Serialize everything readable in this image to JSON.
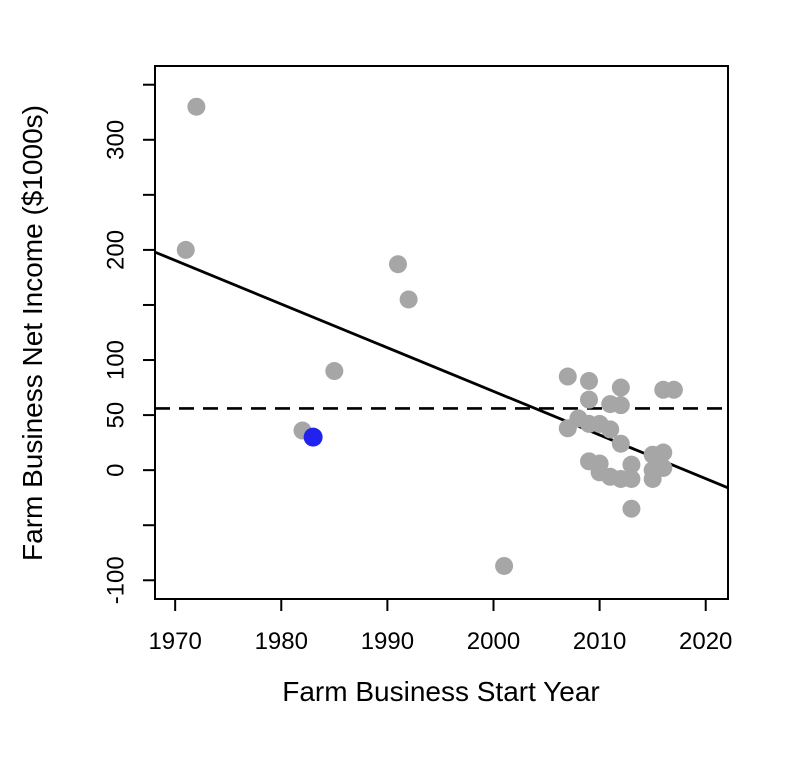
{
  "chart_data": {
    "type": "scatter",
    "title": "",
    "xlabel": "Farm Business Start Year",
    "ylabel": "Farm Business Net Income ($1000s)",
    "x_range": [
      1968.1,
      2022.1
    ],
    "y_range": [
      -117,
      367
    ],
    "x_ticks": [
      1970,
      1980,
      1990,
      2000,
      2010,
      2020
    ],
    "y_ticks_all": [
      -100,
      -50,
      0,
      50,
      100,
      150,
      200,
      250,
      300,
      350
    ],
    "y_ticks_labeled": [
      -100,
      0,
      50,
      100,
      200,
      300
    ],
    "grid": false,
    "legend": "none",
    "points": [
      {
        "year": 1972,
        "value": 330
      },
      {
        "year": 1971,
        "value": 200
      },
      {
        "year": 1991,
        "value": 187
      },
      {
        "year": 1992,
        "value": 155
      },
      {
        "year": 1985,
        "value": 90
      },
      {
        "year": 1982,
        "value": 36
      },
      {
        "year": 2001,
        "value": -87
      },
      {
        "year": 2007,
        "value": 85
      },
      {
        "year": 2009,
        "value": 81
      },
      {
        "year": 2009,
        "value": 64
      },
      {
        "year": 2012,
        "value": 75
      },
      {
        "year": 2016,
        "value": 73
      },
      {
        "year": 2017,
        "value": 73
      },
      {
        "year": 2011,
        "value": 60
      },
      {
        "year": 2012,
        "value": 59
      },
      {
        "year": 2008,
        "value": 47
      },
      {
        "year": 2007,
        "value": 38
      },
      {
        "year": 2009,
        "value": 42
      },
      {
        "year": 2010,
        "value": 42
      },
      {
        "year": 2011,
        "value": 37
      },
      {
        "year": 2012,
        "value": 24
      },
      {
        "year": 2009,
        "value": 8
      },
      {
        "year": 2010,
        "value": 6
      },
      {
        "year": 2010,
        "value": -2
      },
      {
        "year": 2011,
        "value": -6
      },
      {
        "year": 2012,
        "value": -8
      },
      {
        "year": 2013,
        "value": 5
      },
      {
        "year": 2013,
        "value": -8
      },
      {
        "year": 2013,
        "value": -35
      },
      {
        "year": 2015,
        "value": 14
      },
      {
        "year": 2016,
        "value": 16
      },
      {
        "year": 2015,
        "value": 0
      },
      {
        "year": 2016,
        "value": 2
      },
      {
        "year": 2015,
        "value": -8
      }
    ],
    "highlight_point": {
      "year": 1983,
      "value": 30
    },
    "trend_line": {
      "year_start": 1968.1,
      "value_start": 198,
      "year_end": 2022.1,
      "value_end": -16
    },
    "reference_line": {
      "value": 56,
      "style": "dashed"
    },
    "colors": {
      "point": "#a6a6a6",
      "highlight": "#2222ee",
      "line": "#000000",
      "background": "#ffffff"
    }
  }
}
